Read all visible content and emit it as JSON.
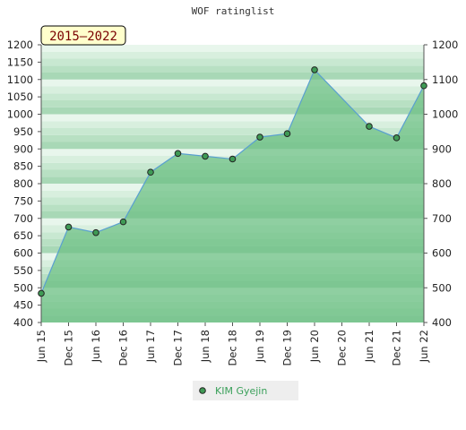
{
  "chart_data": {
    "type": "area",
    "title": "WOF ratinglist",
    "badge": "2015–2022",
    "ylim": [
      400,
      1200
    ],
    "left_ticks": [
      400,
      450,
      500,
      550,
      600,
      650,
      700,
      750,
      800,
      850,
      900,
      950,
      1000,
      1050,
      1100,
      1150,
      1200
    ],
    "right_ticks": [
      400,
      500,
      600,
      700,
      800,
      900,
      1000,
      1100,
      1200
    ],
    "categories": [
      "Jun 15",
      "Dec 15",
      "Jun 16",
      "Dec 16",
      "Jun 17",
      "Dec 17",
      "Jun 18",
      "Dec 18",
      "Jun 19",
      "Dec 19",
      "Jun 20",
      "Dec 20",
      "Jun 21",
      "Dec 21",
      "Jun 22"
    ],
    "series": [
      {
        "name": "KIM Gyejin",
        "points": [
          {
            "x": "Jun 15",
            "y": 484
          },
          {
            "x": "Dec 15",
            "y": 675
          },
          {
            "x": "Jun 16",
            "y": 659
          },
          {
            "x": "Dec 16",
            "y": 690
          },
          {
            "x": "Jun 17",
            "y": 833
          },
          {
            "x": "Dec 17",
            "y": 887
          },
          {
            "x": "Jun 18",
            "y": 879
          },
          {
            "x": "Dec 18",
            "y": 871
          },
          {
            "x": "Jun 19",
            "y": 934
          },
          {
            "x": "Dec 19",
            "y": 944
          },
          {
            "x": "Jun 20",
            "y": 1128
          },
          {
            "x": "Jun 21",
            "y": 965
          },
          {
            "x": "Dec 21",
            "y": 932
          },
          {
            "x": "Jun 22",
            "y": 1082
          }
        ]
      }
    ],
    "colors": {
      "area_fill": "#6cbf84",
      "line": "#5aa0d0",
      "marker": "#3f9a55",
      "badge_bg": "#ffffcc",
      "legend_text": "#3aa05a"
    },
    "legend_position": "bottom-center"
  }
}
